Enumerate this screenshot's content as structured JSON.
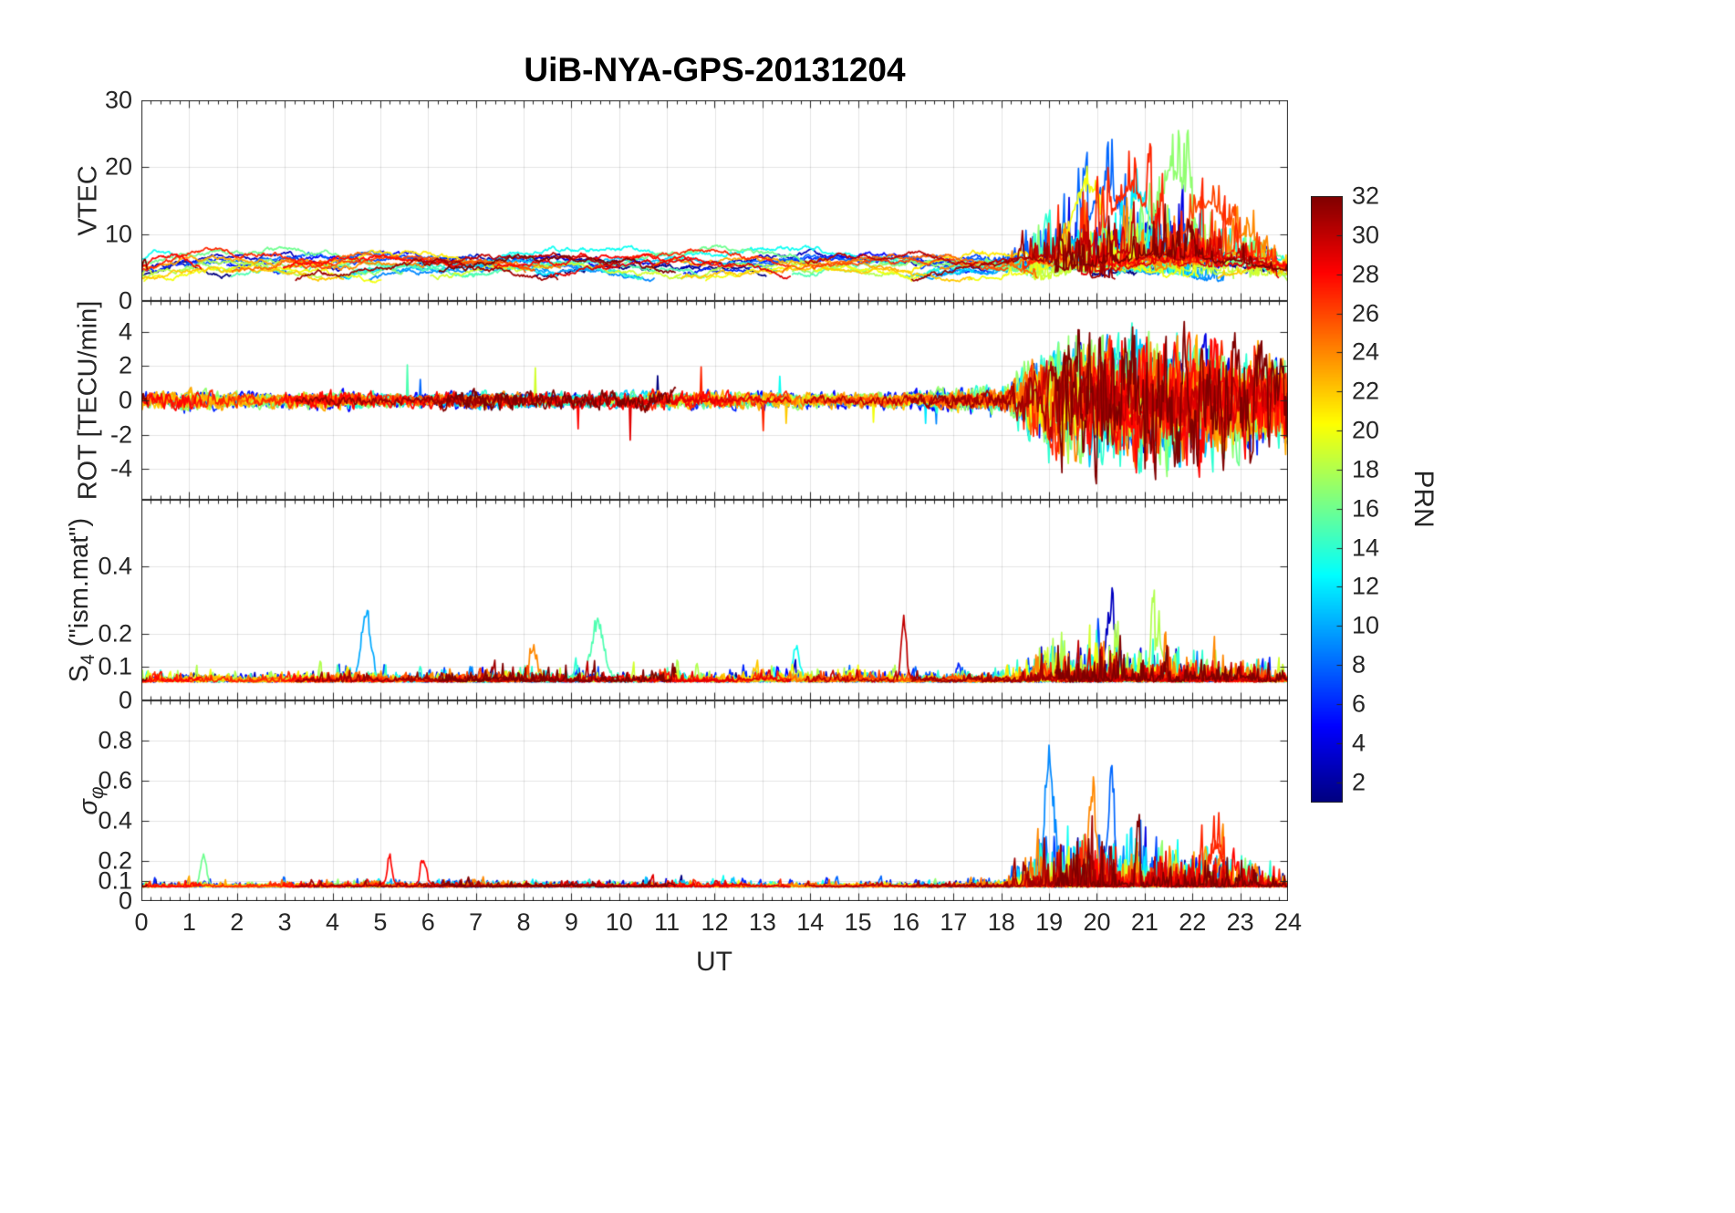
{
  "title": "UiB-NYA-GPS-20131204",
  "seed": 20131204,
  "xaxis": {
    "label": "UT",
    "min": 0,
    "max": 24,
    "ticks": [
      0,
      1,
      2,
      3,
      4,
      5,
      6,
      7,
      8,
      9,
      10,
      11,
      12,
      13,
      14,
      15,
      16,
      17,
      18,
      19,
      20,
      21,
      22,
      23,
      24
    ]
  },
  "colorbar": {
    "label": "PRN",
    "colormap": "jet",
    "vmin": 1,
    "vmax": 32,
    "ticks": [
      2,
      4,
      6,
      8,
      10,
      12,
      14,
      16,
      18,
      20,
      22,
      24,
      26,
      28,
      30,
      32
    ]
  },
  "chart_data": [
    {
      "type": "line",
      "name": "VTEC",
      "ylabel": "VTEC",
      "ylim": [
        0,
        30
      ],
      "yticks": [
        0,
        10,
        20,
        30
      ],
      "x_range": [
        0,
        24
      ],
      "series_colored_by": "PRN 1-32 (jet colormap)",
      "quiet_level_range": [
        3,
        8
      ],
      "storm_envelope_hourly": [
        0,
        0,
        0,
        0,
        0,
        0,
        0,
        0,
        0,
        0,
        0,
        0,
        0,
        0,
        0,
        0,
        0,
        0,
        1,
        9,
        12,
        12,
        10,
        6,
        3
      ],
      "peak_events": [
        {
          "prn": 20,
          "t": 19.8,
          "amp": 15,
          "w": 0.3
        },
        {
          "prn": 17,
          "t": 21.6,
          "amp": 17,
          "w": 0.35
        },
        {
          "prn": 8,
          "t": 20.2,
          "amp": 13,
          "w": 0.3
        },
        {
          "prn": 12,
          "t": 20.9,
          "amp": 12,
          "w": 0.25
        },
        {
          "prn": 27,
          "t": 20.7,
          "amp": 12,
          "w": 0.4
        },
        {
          "prn": 26,
          "t": 22.3,
          "amp": 11,
          "w": 0.4
        },
        {
          "prn": 24,
          "t": 23.2,
          "amp": 5,
          "w": 0.3
        }
      ]
    },
    {
      "type": "line",
      "name": "ROT",
      "ylabel": "ROT [TECU/min]",
      "ylim": [
        -5.8,
        5.8
      ],
      "yticks": [
        -4,
        -2,
        0,
        2,
        4
      ],
      "x_range": [
        0,
        24
      ],
      "series_colored_by": "PRN 1-32 (jet colormap)",
      "noise_amplitude_hourly": [
        0.55,
        0.8,
        0.55,
        0.55,
        0.7,
        0.55,
        0.55,
        0.75,
        0.65,
        0.6,
        0.65,
        0.75,
        0.6,
        0.6,
        0.55,
        0.55,
        0.65,
        0.85,
        1.1,
        4.6,
        5.0,
        5.0,
        4.6,
        4.0,
        3.4
      ],
      "peak_events": []
    },
    {
      "type": "line",
      "name": "S4",
      "ylabel_parts": {
        "pre": "S",
        "sub": "4",
        "post": " (\"ism.mat\")"
      },
      "ylim": [
        0,
        0.6
      ],
      "yticks": [
        0,
        0.1,
        0.2,
        0.4
      ],
      "x_range": [
        0,
        24
      ],
      "series_colored_by": "PRN 1-32 (jet colormap)",
      "baseline": 0.055,
      "burst_envelope_hourly": [
        0.03,
        0.04,
        0.03,
        0.03,
        0.05,
        0.04,
        0.03,
        0.04,
        0.05,
        0.05,
        0.04,
        0.05,
        0.03,
        0.05,
        0.04,
        0.05,
        0.03,
        0.03,
        0.04,
        0.11,
        0.14,
        0.12,
        0.1,
        0.08,
        0.05
      ],
      "peak_events": [
        {
          "prn": 10,
          "t": 4.7,
          "amp": 0.24,
          "w": 0.1
        },
        {
          "prn": 15,
          "t": 9.55,
          "amp": 0.2,
          "w": 0.13
        },
        {
          "prn": 24,
          "t": 8.2,
          "amp": 0.12,
          "w": 0.07
        },
        {
          "prn": 13,
          "t": 13.7,
          "amp": 0.12,
          "w": 0.07
        },
        {
          "prn": 30,
          "t": 15.95,
          "amp": 0.22,
          "w": 0.05
        },
        {
          "prn": 3,
          "t": 20.3,
          "amp": 0.24,
          "w": 0.1
        },
        {
          "prn": 18,
          "t": 21.3,
          "amp": 0.15,
          "w": 0.08
        }
      ]
    },
    {
      "type": "line",
      "name": "sigma_phi",
      "ylabel_parts": {
        "pre": "σ",
        "sub": "φ"
      },
      "ylim": [
        0,
        1.0
      ],
      "yticks": [
        0,
        0.1,
        0.2,
        0.4,
        0.6,
        0.8
      ],
      "x_range": [
        0,
        24
      ],
      "series_colored_by": "PRN 1-32 (jet colormap)",
      "baseline": 0.07,
      "burst_envelope_hourly": [
        0.03,
        0.04,
        0.03,
        0.04,
        0.03,
        0.04,
        0.03,
        0.04,
        0.03,
        0.03,
        0.03,
        0.04,
        0.04,
        0.03,
        0.03,
        0.03,
        0.03,
        0.03,
        0.05,
        0.26,
        0.3,
        0.24,
        0.22,
        0.17,
        0.08
      ],
      "peak_events": [
        {
          "prn": 16,
          "t": 1.3,
          "amp": 0.2,
          "w": 0.06
        },
        {
          "prn": 28,
          "t": 5.2,
          "amp": 0.15,
          "w": 0.05
        },
        {
          "prn": 28,
          "t": 5.9,
          "amp": 0.15,
          "w": 0.06
        },
        {
          "prn": 9,
          "t": 19.0,
          "amp": 0.78,
          "w": 0.09
        },
        {
          "prn": 24,
          "t": 19.9,
          "amp": 0.52,
          "w": 0.08
        },
        {
          "prn": 8,
          "t": 20.3,
          "amp": 0.6,
          "w": 0.07
        },
        {
          "prn": 27,
          "t": 22.5,
          "amp": 0.25,
          "w": 0.12
        },
        {
          "prn": 14,
          "t": 23.2,
          "amp": 0.14,
          "w": 0.07
        }
      ]
    }
  ]
}
